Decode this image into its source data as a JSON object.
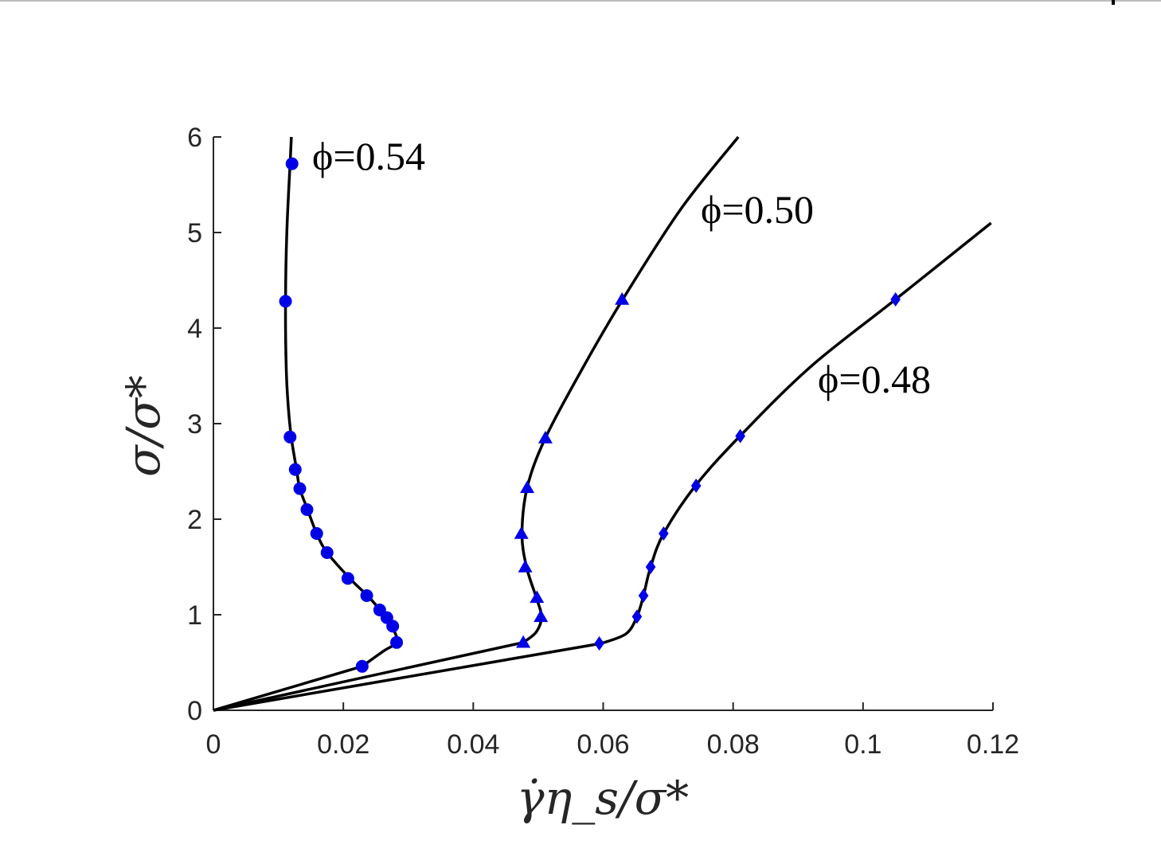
{
  "chart_data": {
    "type": "line",
    "xlabel": "γ̇η_s/σ*",
    "ylabel": "σ/σ*",
    "xlim": [
      0,
      0.12
    ],
    "ylim": [
      0,
      6
    ],
    "x_ticks": [
      0,
      0.02,
      0.04,
      0.06,
      0.08,
      0.1,
      0.12
    ],
    "x_tick_labels": [
      "0",
      "0.02",
      "0.04",
      "0.06",
      "0.08",
      "0.1",
      "0.12"
    ],
    "y_ticks": [
      0,
      1,
      2,
      3,
      4,
      5,
      6
    ],
    "y_tick_labels": [
      "0",
      "1",
      "2",
      "3",
      "4",
      "5",
      "6"
    ],
    "grid": false,
    "line_color": "#000000",
    "marker_color": "#0000e6",
    "series": [
      {
        "name": "ϕ=0.54",
        "marker": "circle",
        "line": [
          [
            0,
            0
          ],
          [
            0.0229,
            0.46
          ],
          [
            0.0262,
            0.62
          ],
          [
            0.0282,
            0.71
          ],
          [
            0.0279,
            0.82
          ],
          [
            0.027,
            0.92
          ],
          [
            0.0262,
            1.0
          ],
          [
            0.0253,
            1.08
          ],
          [
            0.0237,
            1.2
          ],
          [
            0.021,
            1.38
          ],
          [
            0.0175,
            1.65
          ],
          [
            0.0159,
            1.85
          ],
          [
            0.0145,
            2.1
          ],
          [
            0.0133,
            2.32
          ],
          [
            0.0128,
            2.52
          ],
          [
            0.012,
            2.85
          ],
          [
            0.0115,
            3.2
          ],
          [
            0.0112,
            3.6
          ],
          [
            0.0111,
            4.28
          ],
          [
            0.0113,
            5.0
          ],
          [
            0.0118,
            5.72
          ],
          [
            0.012,
            6.0
          ]
        ],
        "points": [
          [
            0.0229,
            0.46
          ],
          [
            0.0282,
            0.71
          ],
          [
            0.0276,
            0.88
          ],
          [
            0.0267,
            0.97
          ],
          [
            0.0256,
            1.05
          ],
          [
            0.0236,
            1.2
          ],
          [
            0.0207,
            1.38
          ],
          [
            0.0175,
            1.65
          ],
          [
            0.0159,
            1.85
          ],
          [
            0.0144,
            2.1
          ],
          [
            0.0133,
            2.32
          ],
          [
            0.0126,
            2.52
          ],
          [
            0.0118,
            2.86
          ],
          [
            0.0111,
            4.28
          ],
          [
            0.0121,
            5.72
          ]
        ]
      },
      {
        "name": "ϕ=0.50",
        "marker": "triangle",
        "line": [
          [
            0,
            0
          ],
          [
            0.0477,
            0.71
          ],
          [
            0.0497,
            0.82
          ],
          [
            0.0505,
            0.98
          ],
          [
            0.0497,
            1.18
          ],
          [
            0.0482,
            1.5
          ],
          [
            0.0475,
            1.85
          ],
          [
            0.0483,
            2.33
          ],
          [
            0.0511,
            2.85
          ],
          [
            0.057,
            3.6
          ],
          [
            0.063,
            4.3
          ],
          [
            0.072,
            5.25
          ],
          [
            0.0808,
            6.0
          ]
        ],
        "points": [
          [
            0.0477,
            0.71
          ],
          [
            0.0504,
            0.98
          ],
          [
            0.0498,
            1.18
          ],
          [
            0.048,
            1.5
          ],
          [
            0.0474,
            1.85
          ],
          [
            0.0483,
            2.33
          ],
          [
            0.0511,
            2.85
          ],
          [
            0.0629,
            4.3
          ]
        ]
      },
      {
        "name": "ϕ=0.48",
        "marker": "diamond",
        "line": [
          [
            0,
            0
          ],
          [
            0.0597,
            0.7
          ],
          [
            0.0635,
            0.8
          ],
          [
            0.0652,
            0.98
          ],
          [
            0.0662,
            1.2
          ],
          [
            0.0673,
            1.5
          ],
          [
            0.0693,
            1.85
          ],
          [
            0.0742,
            2.35
          ],
          [
            0.0812,
            2.88
          ],
          [
            0.092,
            3.6
          ],
          [
            0.105,
            4.3
          ],
          [
            0.1197,
            5.1
          ]
        ],
        "points": [
          [
            0.0594,
            0.7
          ],
          [
            0.0652,
            0.98
          ],
          [
            0.0662,
            1.2
          ],
          [
            0.0673,
            1.5
          ],
          [
            0.0693,
            1.85
          ],
          [
            0.0743,
            2.35
          ],
          [
            0.0811,
            2.87
          ],
          [
            0.105,
            4.3
          ]
        ]
      }
    ]
  }
}
